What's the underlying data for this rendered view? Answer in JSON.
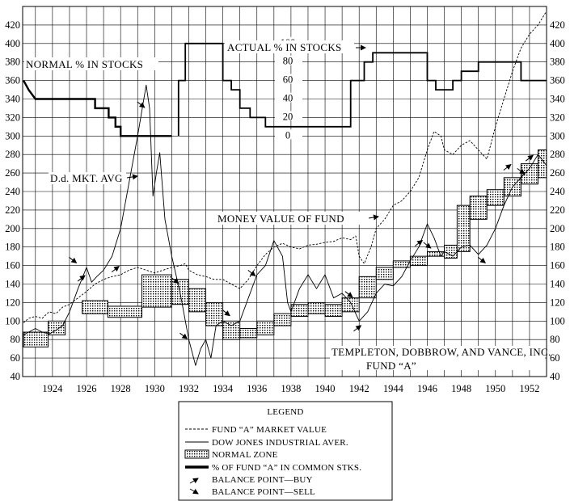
{
  "chart_data": {
    "type": "line",
    "x_ticks": [
      "1924",
      "1926",
      "1928",
      "1930",
      "1932",
      "1934",
      "1936",
      "1938",
      "1940",
      "1942",
      "1944",
      "1946",
      "1948",
      "1950",
      "1952"
    ],
    "y_ticks": [
      "40",
      "60",
      "80",
      "100",
      "120",
      "140",
      "160",
      "180",
      "200",
      "220",
      "240",
      "260",
      "280",
      "300",
      "320",
      "340",
      "360",
      "380",
      "400",
      "420"
    ],
    "x_range": [
      1922.25,
      1953.0
    ],
    "y_range": [
      40,
      440
    ],
    "grid": true,
    "pct_scale_ticks": [
      "0",
      "20",
      "40",
      "60",
      "80",
      "100"
    ],
    "pct_scale_anchor_y": [
      300,
      400
    ],
    "annotations": {
      "normal_pct": "NORMAL % IN STOCKS",
      "actual_pct": "ACTUAL % IN STOCKS",
      "dd_avg": "D.d. MKT. AVG",
      "money_value": "MONEY VALUE OF FUND",
      "credit": "TEMPLETON, DOBBROW, AND VANCE, INC.",
      "fund_name": "FUND “A”"
    },
    "legend": {
      "title": "LEGEND",
      "placement": "bottom-center",
      "items": [
        {
          "label": "FUND “A” MARKET VALUE",
          "symbol": "dashed-line"
        },
        {
          "label": "DOW JONES INDUSTRIAL AVER.",
          "symbol": "thin-line"
        },
        {
          "label": "NORMAL ZONE",
          "symbol": "dotted-box"
        },
        {
          "label": "% OF FUND “A” IN COMMON STKS.",
          "symbol": "thick-line"
        },
        {
          "label": "BALANCE POINT—BUY",
          "symbol": "arrow-up"
        },
        {
          "label": "BALANCE POINT—SELL",
          "symbol": "arrow-down"
        }
      ]
    },
    "series": [
      {
        "kind": "fund_market_value",
        "style": "dashed",
        "points": [
          [
            1922.3,
            98
          ],
          [
            1922.6,
            103
          ],
          [
            1923.0,
            105
          ],
          [
            1923.4,
            103
          ],
          [
            1923.8,
            110
          ],
          [
            1924.2,
            108
          ],
          [
            1924.6,
            115
          ],
          [
            1925.0,
            118
          ],
          [
            1925.5,
            125
          ],
          [
            1926.0,
            132
          ],
          [
            1926.5,
            140
          ],
          [
            1927.0,
            145
          ],
          [
            1927.5,
            148
          ],
          [
            1928.0,
            150
          ],
          [
            1928.5,
            155
          ],
          [
            1929.0,
            158
          ],
          [
            1929.5,
            155
          ],
          [
            1930.0,
            152
          ],
          [
            1930.5,
            155
          ],
          [
            1931.0,
            158
          ],
          [
            1931.5,
            160
          ],
          [
            1931.8,
            162
          ],
          [
            1932.0,
            155
          ],
          [
            1932.5,
            150
          ],
          [
            1933.0,
            148
          ],
          [
            1933.5,
            145
          ],
          [
            1934.0,
            145
          ],
          [
            1934.5,
            140
          ],
          [
            1935.0,
            135
          ],
          [
            1935.5,
            145
          ],
          [
            1936.0,
            160
          ],
          [
            1936.5,
            172
          ],
          [
            1937.0,
            180
          ],
          [
            1937.5,
            184
          ],
          [
            1938.0,
            180
          ],
          [
            1938.5,
            178
          ],
          [
            1939.0,
            182
          ],
          [
            1939.5,
            183
          ],
          [
            1940.0,
            185
          ],
          [
            1940.5,
            186
          ],
          [
            1941.0,
            190
          ],
          [
            1941.5,
            188
          ],
          [
            1941.8,
            192
          ],
          [
            1942.0,
            170
          ],
          [
            1942.3,
            162
          ],
          [
            1942.7,
            180
          ],
          [
            1943.0,
            200
          ],
          [
            1943.5,
            210
          ],
          [
            1944.0,
            225
          ],
          [
            1944.5,
            230
          ],
          [
            1945.0,
            240
          ],
          [
            1945.5,
            255
          ],
          [
            1946.0,
            285
          ],
          [
            1946.4,
            305
          ],
          [
            1946.8,
            300
          ],
          [
            1947.0,
            285
          ],
          [
            1947.5,
            280
          ],
          [
            1948.0,
            290
          ],
          [
            1948.5,
            295
          ],
          [
            1949.0,
            285
          ],
          [
            1949.5,
            275
          ],
          [
            1950.0,
            310
          ],
          [
            1950.5,
            340
          ],
          [
            1951.0,
            370
          ],
          [
            1951.5,
            395
          ],
          [
            1952.0,
            410
          ],
          [
            1952.5,
            420
          ],
          [
            1953.0,
            435
          ]
        ]
      },
      {
        "kind": "dow_jones_average",
        "style": "solid",
        "points": [
          [
            1922.3,
            85
          ],
          [
            1922.6,
            88
          ],
          [
            1923.0,
            92
          ],
          [
            1923.4,
            88
          ],
          [
            1923.8,
            86
          ],
          [
            1924.2,
            90
          ],
          [
            1924.6,
            95
          ],
          [
            1925.0,
            110
          ],
          [
            1925.5,
            135
          ],
          [
            1926.0,
            158
          ],
          [
            1926.3,
            142
          ],
          [
            1926.6,
            148
          ],
          [
            1927.0,
            155
          ],
          [
            1927.5,
            170
          ],
          [
            1928.0,
            200
          ],
          [
            1928.5,
            250
          ],
          [
            1929.0,
            300
          ],
          [
            1929.5,
            355
          ],
          [
            1929.7,
            330
          ],
          [
            1929.9,
            235
          ],
          [
            1930.1,
            260
          ],
          [
            1930.3,
            282
          ],
          [
            1930.6,
            210
          ],
          [
            1931.0,
            170
          ],
          [
            1931.5,
            130
          ],
          [
            1932.0,
            80
          ],
          [
            1932.4,
            52
          ],
          [
            1932.7,
            70
          ],
          [
            1933.0,
            80
          ],
          [
            1933.3,
            60
          ],
          [
            1933.6,
            95
          ],
          [
            1934.0,
            100
          ],
          [
            1934.5,
            95
          ],
          [
            1935.0,
            100
          ],
          [
            1935.5,
            125
          ],
          [
            1936.0,
            150
          ],
          [
            1936.5,
            160
          ],
          [
            1937.0,
            187
          ],
          [
            1937.5,
            170
          ],
          [
            1937.8,
            120
          ],
          [
            1938.0,
            110
          ],
          [
            1938.5,
            135
          ],
          [
            1939.0,
            150
          ],
          [
            1939.5,
            135
          ],
          [
            1940.0,
            150
          ],
          [
            1940.5,
            125
          ],
          [
            1941.0,
            130
          ],
          [
            1941.5,
            120
          ],
          [
            1942.0,
            100
          ],
          [
            1942.5,
            110
          ],
          [
            1943.0,
            130
          ],
          [
            1943.5,
            140
          ],
          [
            1944.0,
            138
          ],
          [
            1944.5,
            148
          ],
          [
            1945.0,
            165
          ],
          [
            1945.5,
            180
          ],
          [
            1946.0,
            205
          ],
          [
            1946.4,
            190
          ],
          [
            1946.8,
            170
          ],
          [
            1947.0,
            175
          ],
          [
            1947.5,
            170
          ],
          [
            1948.0,
            180
          ],
          [
            1948.5,
            182
          ],
          [
            1949.0,
            172
          ],
          [
            1949.5,
            182
          ],
          [
            1950.0,
            200
          ],
          [
            1950.5,
            225
          ],
          [
            1951.0,
            245
          ],
          [
            1951.5,
            255
          ],
          [
            1952.0,
            265
          ],
          [
            1952.5,
            280
          ],
          [
            1953.0,
            268
          ]
        ]
      }
    ],
    "normal_zone": [
      [
        1922.3,
        1923.75,
        72,
        88
      ],
      [
        1923.75,
        1924.75,
        85,
        100
      ],
      [
        1925.75,
        1927.25,
        108,
        122
      ],
      [
        1927.25,
        1929.25,
        104,
        116
      ],
      [
        1929.25,
        1931.0,
        115,
        150
      ],
      [
        1931.0,
        1932.0,
        118,
        145
      ],
      [
        1932.0,
        1933.0,
        110,
        135
      ],
      [
        1933.0,
        1934.0,
        95,
        120
      ],
      [
        1934.0,
        1935.0,
        80,
        100
      ],
      [
        1935.0,
        1936.0,
        82,
        92
      ],
      [
        1936.0,
        1937.0,
        85,
        100
      ],
      [
        1937.0,
        1938.0,
        95,
        108
      ],
      [
        1938.0,
        1939.0,
        105,
        118
      ],
      [
        1939.0,
        1940.0,
        108,
        120
      ],
      [
        1940.0,
        1941.0,
        105,
        118
      ],
      [
        1941.0,
        1942.0,
        110,
        125
      ],
      [
        1942.0,
        1943.0,
        125,
        148
      ],
      [
        1943.0,
        1944.0,
        145,
        158
      ],
      [
        1944.0,
        1945.0,
        158,
        165
      ],
      [
        1945.0,
        1946.0,
        160,
        170
      ],
      [
        1946.0,
        1947.0,
        170,
        175
      ],
      [
        1947.0,
        1947.75,
        168,
        182
      ],
      [
        1947.75,
        1948.5,
        175,
        225
      ],
      [
        1948.5,
        1949.5,
        210,
        235
      ],
      [
        1949.5,
        1950.5,
        225,
        242
      ],
      [
        1950.5,
        1951.5,
        235,
        255
      ],
      [
        1951.5,
        1952.5,
        248,
        270
      ],
      [
        1952.5,
        1953.0,
        255,
        285
      ]
    ],
    "pct_in_stocks": {
      "normal": [
        [
          1922.3,
          360
        ],
        [
          1922.6,
          350
        ],
        [
          1923.0,
          340
        ],
        [
          1926.5,
          340
        ],
        [
          1926.5,
          330
        ],
        [
          1927.3,
          330
        ],
        [
          1927.3,
          320
        ],
        [
          1927.7,
          320
        ],
        [
          1927.7,
          310
        ],
        [
          1928.0,
          310
        ],
        [
          1928.0,
          300
        ],
        [
          1929.3,
          300
        ],
        [
          1931.0,
          300
        ],
        [
          1931.0,
          300
        ]
      ],
      "actual": [
        [
          1931.4,
          300
        ],
        [
          1931.4,
          360
        ],
        [
          1931.8,
          360
        ],
        [
          1931.8,
          400
        ],
        [
          1934.0,
          400
        ],
        [
          1934.0,
          360
        ],
        [
          1934.5,
          360
        ],
        [
          1934.5,
          350
        ],
        [
          1935.0,
          350
        ],
        [
          1935.0,
          330
        ],
        [
          1935.6,
          330
        ],
        [
          1935.6,
          320
        ],
        [
          1936.5,
          320
        ],
        [
          1936.5,
          310
        ],
        [
          1939.8,
          310
        ],
        [
          1941.0,
          310
        ],
        [
          1941.5,
          310
        ],
        [
          1941.5,
          360
        ],
        [
          1942.3,
          360
        ],
        [
          1942.3,
          380
        ],
        [
          1942.8,
          380
        ],
        [
          1942.8,
          390
        ],
        [
          1946.0,
          390
        ],
        [
          1946.0,
          360
        ],
        [
          1946.5,
          360
        ],
        [
          1946.5,
          350
        ],
        [
          1947.5,
          350
        ],
        [
          1947.5,
          360
        ],
        [
          1948.0,
          360
        ],
        [
          1948.0,
          370
        ],
        [
          1949.0,
          370
        ],
        [
          1949.0,
          380
        ],
        [
          1951.5,
          380
        ],
        [
          1951.5,
          360
        ],
        [
          1953.0,
          360
        ]
      ]
    },
    "balance_points": {
      "buy": [
        [
          1926.0,
          150
        ],
        [
          1928.0,
          160
        ],
        [
          1942.2,
          96
        ],
        [
          1945.8,
          188
        ],
        [
          1951.0,
          270
        ],
        [
          1952.3,
          280
        ]
      ],
      "sell": [
        [
          1925.5,
          162
        ],
        [
          1929.5,
          330
        ],
        [
          1931.5,
          140
        ],
        [
          1932.0,
          80
        ],
        [
          1934.5,
          105
        ],
        [
          1936.0,
          148
        ],
        [
          1941.7,
          125
        ],
        [
          1946.3,
          178
        ],
        [
          1949.5,
          162
        ],
        [
          1951.8,
          258
        ]
      ]
    }
  }
}
